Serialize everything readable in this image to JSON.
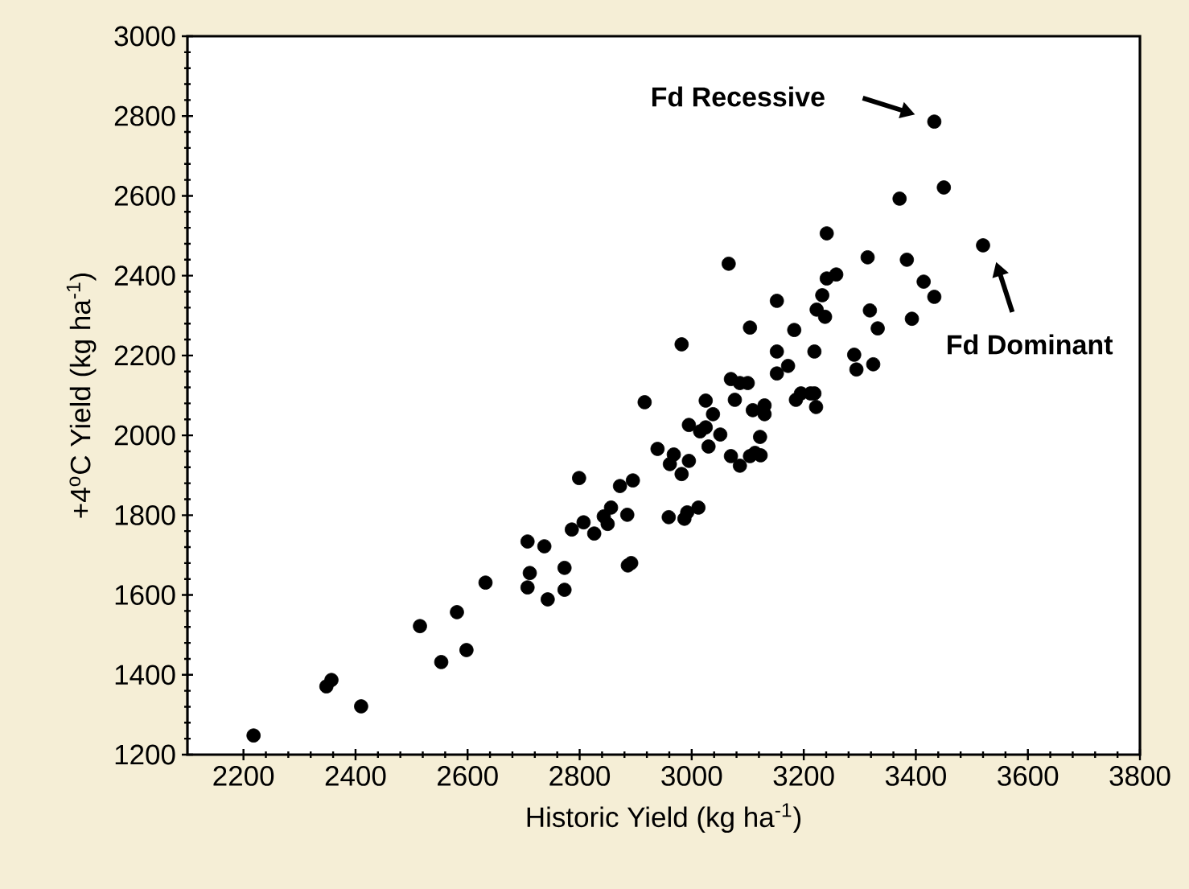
{
  "chart_data": {
    "type": "scatter",
    "xlabel": "Historic Yield (kg ha$^{-1}$)",
    "ylabel": "+4$^{o}$C Yield (kg ha$^{-1}$)",
    "x": [
      2218,
      2348,
      2357,
      2410,
      2515,
      2553,
      2581,
      2598,
      2632,
      2707,
      2707,
      2711,
      2737,
      2743,
      2773,
      2773,
      2786,
      2799,
      2807,
      2826,
      2843,
      2850,
      2856,
      2872,
      2885,
      2886,
      2892,
      2895,
      2916,
      2939,
      2959,
      2961,
      2968,
      2982,
      2982,
      2987,
      2992,
      2995,
      2995,
      3012,
      3015,
      3025,
      3025,
      3030,
      3038,
      3051,
      3066,
      3070,
      3070,
      3077,
      3086,
      3086,
      3100,
      3104,
      3104,
      3109,
      3113,
      3122,
      3123,
      3130,
      3130,
      3152,
      3152,
      3152,
      3172,
      3183,
      3186,
      3195,
      3212,
      3219,
      3219,
      3223,
      3222,
      3233,
      3238,
      3241,
      3241,
      3258,
      3290,
      3294,
      3314,
      3318,
      3324,
      3332,
      3371,
      3384,
      3393,
      3414,
      3433,
      3433,
      3450,
      3520
    ],
    "values": [
      1248,
      1371,
      1387,
      1321,
      1522,
      1432,
      1557,
      1462,
      1631,
      1734,
      1619,
      1655,
      1722,
      1589,
      1668,
      1613,
      1764,
      1893,
      1782,
      1754,
      1797,
      1778,
      1819,
      1873,
      1801,
      1674,
      1680,
      1887,
      2083,
      1966,
      1795,
      1928,
      1952,
      1903,
      2228,
      1791,
      1807,
      2026,
      1936,
      1819,
      2010,
      2087,
      2020,
      1972,
      2053,
      2002,
      2430,
      1948,
      2141,
      2089,
      1924,
      2131,
      2131,
      1948,
      2270,
      2063,
      1956,
      1996,
      1950,
      2075,
      2053,
      2337,
      2210,
      2155,
      2174,
      2264,
      2089,
      2105,
      2105,
      2105,
      2210,
      2315,
      2071,
      2351,
      2297,
      2393,
      2506,
      2403,
      2202,
      2165,
      2446,
      2313,
      2178,
      2268,
      2593,
      2440,
      2292,
      2385,
      2347,
      2786,
      2621,
      2476
    ],
    "color": "#000000",
    "marker": "circle",
    "xlim": [
      2100,
      3800
    ],
    "ylim": [
      1200,
      3000
    ],
    "xticks": [
      2200,
      2400,
      2600,
      2800,
      3000,
      3200,
      3400,
      3600,
      3800
    ],
    "yticks": [
      1200,
      1400,
      1600,
      1800,
      2000,
      2200,
      2400,
      2600,
      2800,
      3000
    ],
    "annotations": [
      "Fd Recessive",
      "Fd Dominant"
    ]
  }
}
